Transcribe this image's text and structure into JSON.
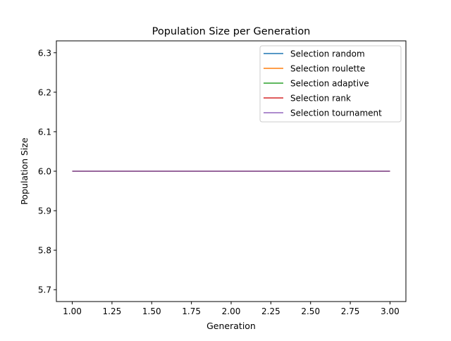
{
  "chart_data": {
    "type": "line",
    "title": "Population Size per Generation",
    "xlabel": "Generation",
    "ylabel": "Population Size",
    "xlim": [
      0.9,
      3.1
    ],
    "ylim": [
      5.67,
      6.33
    ],
    "xticks": [
      1.0,
      1.25,
      1.5,
      1.75,
      2.0,
      2.25,
      2.5,
      2.75,
      3.0
    ],
    "xtick_labels": [
      "1.00",
      "1.25",
      "1.50",
      "1.75",
      "2.00",
      "2.25",
      "2.50",
      "2.75",
      "3.00"
    ],
    "yticks": [
      5.7,
      5.8,
      5.9,
      6.0,
      6.1,
      6.2,
      6.3
    ],
    "ytick_labels": [
      "5.7",
      "5.8",
      "5.9",
      "6.0",
      "6.1",
      "6.2",
      "6.3"
    ],
    "grid": false,
    "legend_position": "top-right",
    "x": [
      1,
      2,
      3
    ],
    "series": [
      {
        "name": "Selection random",
        "color": "#1f77b4",
        "values": [
          6,
          6,
          6
        ]
      },
      {
        "name": "Selection roulette",
        "color": "#ff7f0e",
        "values": [
          6,
          6,
          6
        ]
      },
      {
        "name": "Selection adaptive",
        "color": "#2ca02c",
        "values": [
          6,
          6,
          6
        ]
      },
      {
        "name": "Selection rank",
        "color": "#d62728",
        "values": [
          6,
          6,
          6
        ]
      },
      {
        "name": "Selection tournament",
        "color": "#9467bd",
        "values": [
          6,
          6,
          6
        ]
      }
    ]
  }
}
